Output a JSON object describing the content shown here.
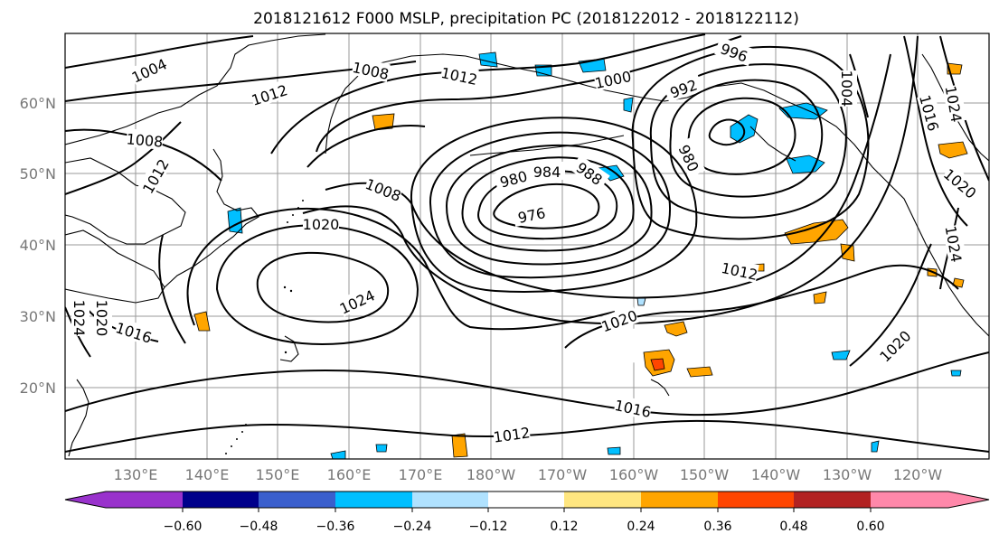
{
  "title": "2018121612 F000 MSLP, precipitation PC (2018122012 - 2018122112)",
  "map": {
    "lon_labels": [
      "130°E",
      "140°E",
      "150°E",
      "160°E",
      "170°E",
      "180°W",
      "170°W",
      "160°W",
      "150°W",
      "140°W",
      "130°W",
      "120°W"
    ],
    "lat_labels": [
      "60°N",
      "50°N",
      "40°N",
      "30°N",
      "20°N"
    ],
    "contour_labels": [
      {
        "text": "1004"
      },
      {
        "text": "1008"
      },
      {
        "text": "1012"
      },
      {
        "text": "1012"
      },
      {
        "text": "1008"
      },
      {
        "text": "1012"
      },
      {
        "text": "1008"
      },
      {
        "text": "1020"
      },
      {
        "text": "1024"
      },
      {
        "text": "1016"
      },
      {
        "text": "1020"
      },
      {
        "text": "1024"
      },
      {
        "text": "976"
      },
      {
        "text": "980"
      },
      {
        "text": "984"
      },
      {
        "text": "988"
      },
      {
        "text": "980"
      },
      {
        "text": "1000"
      },
      {
        "text": "996"
      },
      {
        "text": "992"
      },
      {
        "text": "1012"
      },
      {
        "text": "1020"
      },
      {
        "text": "1016"
      },
      {
        "text": "1012"
      },
      {
        "text": "1020"
      },
      {
        "text": "1004"
      },
      {
        "text": "1016"
      },
      {
        "text": "1024"
      },
      {
        "text": "1020"
      },
      {
        "text": "1024"
      }
    ]
  },
  "colorbar": {
    "colors": [
      "#9932cc",
      "#00008b",
      "#3a5fcd",
      "#00bfff",
      "#b0e2ff",
      "#ffffff",
      "#ffe680",
      "#ffa500",
      "#ff4500",
      "#b22222",
      "#ff88aa"
    ],
    "labels": [
      "−0.60",
      "−0.48",
      "−0.36",
      "−0.24",
      "−0.12",
      "0.12",
      "0.24",
      "0.36",
      "0.48",
      "0.60"
    ]
  }
}
